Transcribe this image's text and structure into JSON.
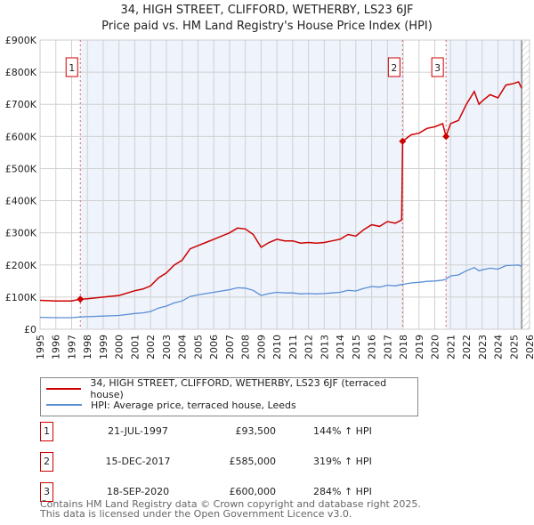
{
  "chart_data": {
    "type": "line",
    "title": "34, HIGH STREET, CLIFFORD, WETHERBY, LS23 6JF",
    "subtitle": "Price paid vs. HM Land Registry's House Price Index (HPI)",
    "xlim": [
      1995,
      2026
    ],
    "ylim": [
      0,
      900000
    ],
    "y_ticks": [
      0,
      100000,
      200000,
      300000,
      400000,
      500000,
      600000,
      700000,
      800000,
      900000
    ],
    "y_tick_labels": [
      "£0",
      "£100K",
      "£200K",
      "£300K",
      "£400K",
      "£500K",
      "£600K",
      "£700K",
      "£800K",
      "£900K"
    ],
    "x_ticks": [
      "1995",
      "1996",
      "1997",
      "1998",
      "1999",
      "2000",
      "2001",
      "2002",
      "2003",
      "2004",
      "2005",
      "2006",
      "2007",
      "2008",
      "2009",
      "2010",
      "2011",
      "2012",
      "2013",
      "2014",
      "2015",
      "2016",
      "2017",
      "2018",
      "2019",
      "2020",
      "2021",
      "2022",
      "2023",
      "2024",
      "2025",
      "2026"
    ],
    "grid": true,
    "x": [
      1995,
      1996,
      1997,
      1997.55,
      1998,
      1999,
      2000,
      2001,
      2001.5,
      2002,
      2002.5,
      2003,
      2003.5,
      2004,
      2004.5,
      2005,
      2005.5,
      2006,
      2006.5,
      2007,
      2007.5,
      2008,
      2008.5,
      2009,
      2009.5,
      2010,
      2010.5,
      2011,
      2011.5,
      2012,
      2012.5,
      2013,
      2013.5,
      2014,
      2014.5,
      2015,
      2015.5,
      2016,
      2016.5,
      2017,
      2017.5,
      2017.9,
      2017.96,
      2018.5,
      2019,
      2019.5,
      2020,
      2020.5,
      2020.71,
      2021,
      2021.5,
      2022,
      2022.5,
      2022.8,
      2023,
      2023.5,
      2024,
      2024.5,
      2025,
      2025.3,
      2025.5
    ],
    "series": [
      {
        "name": "34, HIGH STREET, CLIFFORD, WETHERBY, LS23 6JF (terraced house)",
        "color": "#cc0000",
        "values": [
          90000,
          88000,
          88000,
          93500,
          95000,
          100000,
          105000,
          120000,
          125000,
          135000,
          160000,
          175000,
          200000,
          215000,
          250000,
          260000,
          270000,
          280000,
          290000,
          300000,
          315000,
          312000,
          295000,
          255000,
          270000,
          280000,
          275000,
          275000,
          268000,
          270000,
          268000,
          270000,
          275000,
          280000,
          295000,
          290000,
          310000,
          325000,
          320000,
          335000,
          330000,
          340000,
          585000,
          605000,
          610000,
          625000,
          630000,
          640000,
          600000,
          640000,
          650000,
          700000,
          740000,
          700000,
          710000,
          730000,
          720000,
          760000,
          765000,
          770000,
          750000
        ]
      },
      {
        "name": "HPI: Average price, terraced house, Leeds",
        "color": "#5b8ed6",
        "values": [
          37000,
          36000,
          36000,
          38300,
          39000,
          41000,
          43000,
          49000,
          51000,
          55000,
          66000,
          72000,
          82000,
          88000,
          102000,
          107000,
          111000,
          115000,
          119000,
          123000,
          129000,
          128000,
          121000,
          105000,
          111000,
          115000,
          113000,
          113000,
          110000,
          111000,
          110000,
          111000,
          113000,
          115000,
          121000,
          119000,
          127000,
          133000,
          131000,
          137000,
          135000,
          139300,
          139600,
          144000,
          146000,
          149000,
          150000,
          153000,
          156000,
          166000,
          169000,
          182000,
          192000,
          182000,
          185000,
          190000,
          187000,
          198000,
          199000,
          200000,
          195000
        ]
      }
    ],
    "sales": [
      {
        "num": "1",
        "x": 1997.55,
        "date": "21-JUL-1997",
        "price": "£93,500",
        "value": 93500,
        "hpi": "144% ↑ HPI"
      },
      {
        "num": "2",
        "x": 2017.96,
        "date": "15-DEC-2017",
        "price": "£585,000",
        "value": 585000,
        "hpi": "319% ↑ HPI"
      },
      {
        "num": "3",
        "x": 2020.71,
        "date": "18-SEP-2020",
        "price": "£600,000",
        "value": 600000,
        "hpi": "284% ↑ HPI"
      }
    ],
    "forecast_start": 2025.5,
    "legend_position": "bottom"
  },
  "footer": {
    "line1": "Contains HM Land Registry data © Crown copyright and database right 2025.",
    "line2": "This data is licensed under the Open Government Licence v3.0."
  }
}
